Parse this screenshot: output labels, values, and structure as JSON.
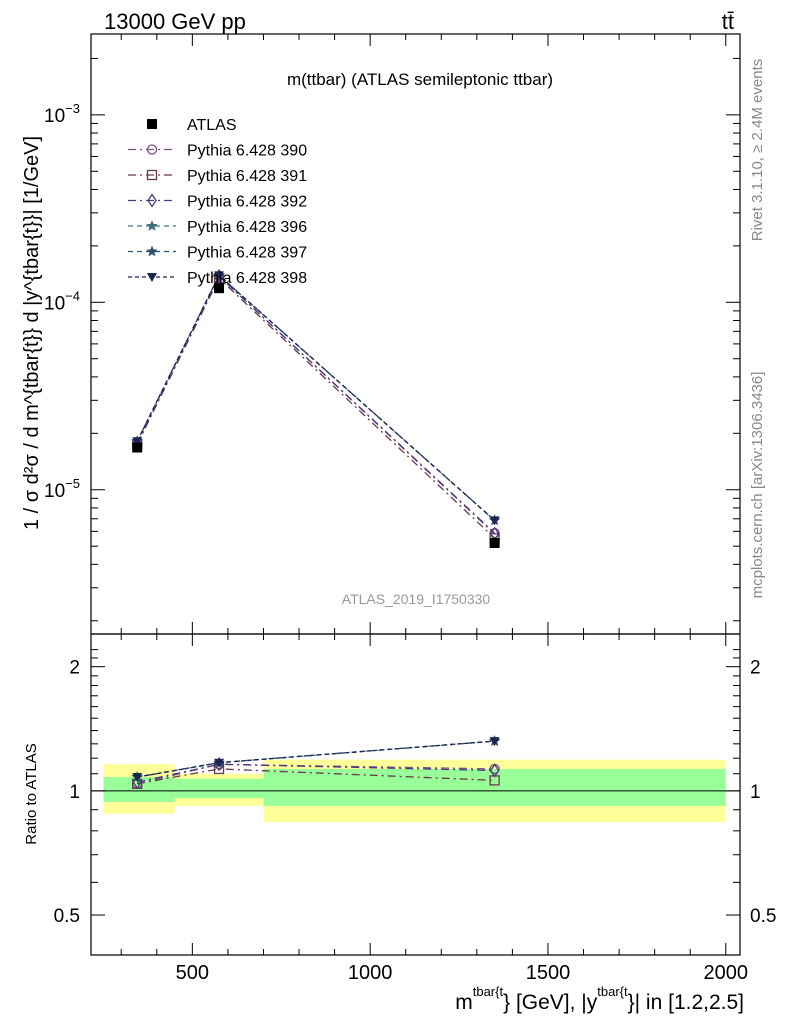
{
  "header": {
    "left": "13000 GeV pp",
    "right": "tt̄"
  },
  "side_labels": {
    "rivet": "Rivet 3.1.10, ≥ 2.4M events",
    "mcplots": "mcplots.cern.ch [arXiv:1306.3436]"
  },
  "chart_data": {
    "type": "line",
    "title": "m(ttbar) (ATLAS semileptonic ttbar)",
    "analysis_tag": "ATLAS_2019_I1750330",
    "xlabel": {
      "base": "m",
      "sup1": "tbar{t",
      "mid": "} [GeV], |y",
      "sup2": "tbar{t",
      "end": "}| in [1.2,2.5]"
    },
    "ylabel": "1 / σ d²σ / d m^{tbar{t}} d |y^{tbar{t}}| [1/GeV]",
    "ratio_ylabel": "Ratio to ATLAS",
    "xlim": [
      215,
      2040
    ],
    "ylim_main": [
      1.7e-06,
      0.0027
    ],
    "ylim_ratio": [
      0.4,
      2.4
    ],
    "log_y_main": true,
    "log_y_ratio": true,
    "x_ticks": [
      {
        "value": 500,
        "label": "500"
      },
      {
        "value": 1000,
        "label": "1000"
      },
      {
        "value": 1500,
        "label": "1500"
      },
      {
        "value": 2000,
        "label": "2000"
      }
    ],
    "y_ticks_main": [
      {
        "value": 1e-05,
        "base": "10",
        "exp": "−5"
      },
      {
        "value": 0.0001,
        "base": "10",
        "exp": "−4"
      },
      {
        "value": 0.001,
        "base": "10",
        "exp": "−3"
      }
    ],
    "y_ticks_ratio": [
      {
        "value": 0.5,
        "label": "0.5"
      },
      {
        "value": 1,
        "label": "1"
      },
      {
        "value": 2,
        "label": "2"
      }
    ],
    "bins": [
      [
        250,
        450
      ],
      [
        450,
        700
      ],
      [
        700,
        2000
      ]
    ],
    "x": [
      345,
      575,
      1350
    ],
    "data": {
      "name": "ATLAS",
      "values": [
        1.68e-05,
        0.000119,
        5.2e-06
      ],
      "band_stat": [
        [
          0.94,
          1.08
        ],
        [
          0.96,
          1.07
        ],
        [
          0.92,
          1.13
        ]
      ],
      "band_total": [
        [
          0.88,
          1.16
        ],
        [
          0.92,
          1.1
        ],
        [
          0.84,
          1.19
        ]
      ]
    },
    "series": [
      {
        "name": "Pythia 6.428 390",
        "color": "#7b4e80",
        "marker": "circle",
        "dash": "8,4,2,4",
        "ratio": [
          1.04,
          1.16,
          1.13
        ]
      },
      {
        "name": "Pythia 6.428 391",
        "color": "#6b3a4a",
        "marker": "square",
        "dash": "8,4,2,4",
        "ratio": [
          1.04,
          1.13,
          1.06
        ]
      },
      {
        "name": "Pythia 6.428 392",
        "color": "#4c3a82",
        "marker": "diamond",
        "dash": "8,4,2,4",
        "ratio": [
          1.05,
          1.16,
          1.12
        ]
      },
      {
        "name": "Pythia 6.428 396",
        "color": "#3f6f7e",
        "marker": "star",
        "dash": "5,4",
        "ratio": [
          1.08,
          1.17,
          1.32
        ]
      },
      {
        "name": "Pythia 6.428 397",
        "color": "#2f4f6f",
        "marker": "star",
        "dash": "5,4",
        "ratio": [
          1.08,
          1.17,
          1.32
        ]
      },
      {
        "name": "Pythia 6.428 398",
        "color": "#1a2552",
        "marker": "triangle-down",
        "dash": "4,3",
        "ratio": [
          1.08,
          1.17,
          1.32
        ]
      }
    ],
    "colors": {
      "stat_band": "#99ff99",
      "total_band": "#ffff99",
      "data": "#000000",
      "tag": "#999999"
    }
  }
}
